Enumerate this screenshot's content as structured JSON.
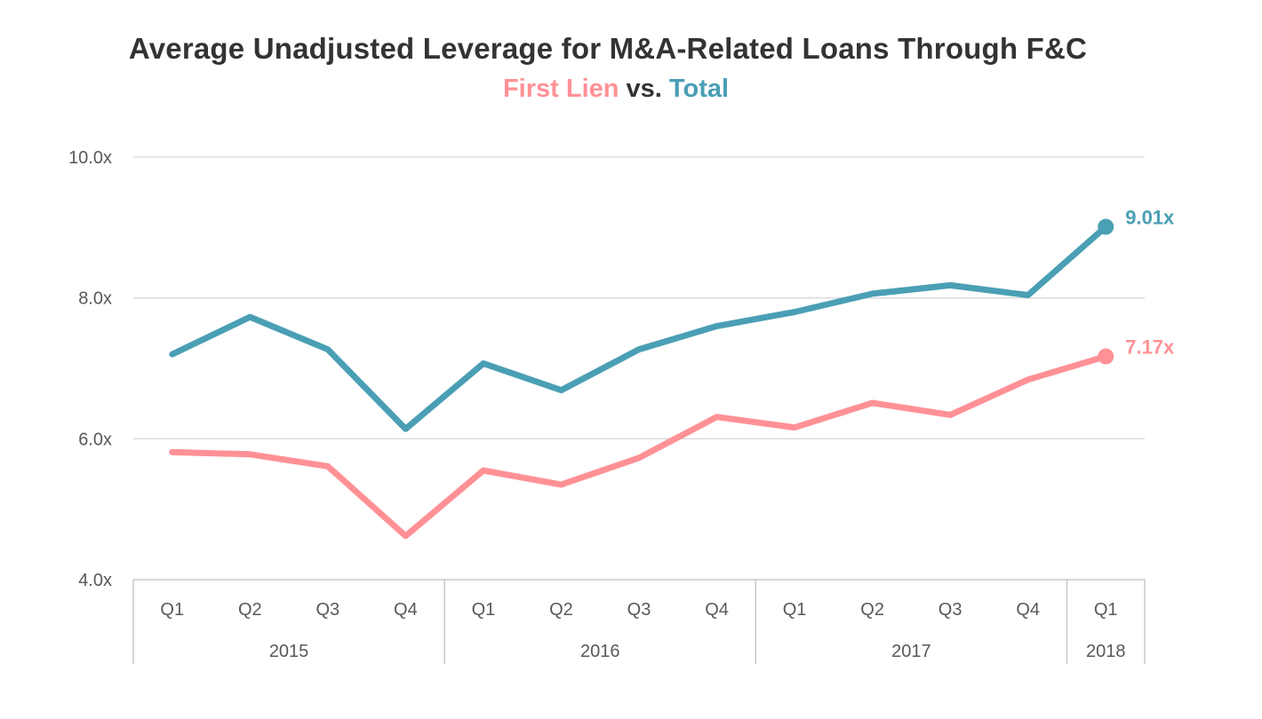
{
  "title": "Average Unadjusted Leverage for M&A-Related Loans Through F&C",
  "subtitle": {
    "series1": "First Lien",
    "separator": "vs.",
    "series2": "Total"
  },
  "colors": {
    "first_lien": "#FF9196",
    "total": "#4A9FB5",
    "axis": "#c8c8c8",
    "grid": "#d9d9d9",
    "tick_text": "#595959"
  },
  "chart_data": {
    "type": "line",
    "categories": [
      "Q1",
      "Q2",
      "Q3",
      "Q4",
      "Q1",
      "Q2",
      "Q3",
      "Q4",
      "Q1",
      "Q2",
      "Q3",
      "Q4",
      "Q1"
    ],
    "year_groups": [
      {
        "label": "2015",
        "count": 4
      },
      {
        "label": "2016",
        "count": 4
      },
      {
        "label": "2017",
        "count": 4
      },
      {
        "label": "2018",
        "count": 1
      }
    ],
    "series": [
      {
        "name": "Total",
        "color": "#4A9FB5",
        "values": [
          7.2,
          7.73,
          7.27,
          6.14,
          7.07,
          6.69,
          7.27,
          7.6,
          7.8,
          8.06,
          8.18,
          8.04,
          9.01
        ],
        "end_label": "9.01x"
      },
      {
        "name": "First Lien",
        "color": "#FF9196",
        "values": [
          5.81,
          5.78,
          5.61,
          4.62,
          5.55,
          5.35,
          5.73,
          6.31,
          6.16,
          6.51,
          6.34,
          6.84,
          7.17
        ],
        "end_label": "7.17x"
      }
    ],
    "ylim": [
      4.0,
      10.0
    ],
    "yticks": [
      4.0,
      6.0,
      8.0,
      10.0
    ],
    "ytick_labels": [
      "4.0x",
      "6.0x",
      "8.0x",
      "10.0x"
    ],
    "grid": true,
    "legend": "subtitle"
  }
}
